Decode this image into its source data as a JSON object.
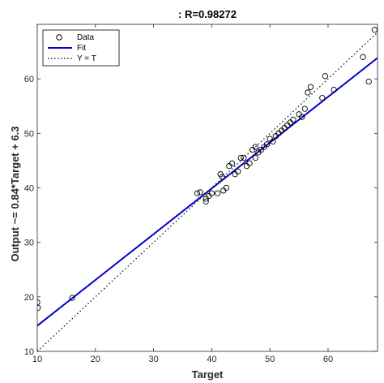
{
  "chart_data": {
    "type": "scatter",
    "title": ": R=0.98272",
    "xlabel": "Target",
    "ylabel": "Output ~= 0.84*Target + 6.3",
    "xlim": [
      10,
      68.5
    ],
    "ylim": [
      10,
      70
    ],
    "xticks": [
      10,
      20,
      30,
      40,
      50,
      60
    ],
    "yticks": [
      10,
      20,
      30,
      40,
      50,
      60
    ],
    "grid": false,
    "legend_position": "top-left",
    "colors": {
      "data": "#000000",
      "fit": "#0000cc",
      "identity": "#000000"
    },
    "series": [
      {
        "name": "Data",
        "style": "open-circle",
        "points": [
          [
            10,
            19
          ],
          [
            10.1,
            18
          ],
          [
            16,
            19.8
          ],
          [
            37.5,
            39
          ],
          [
            38,
            39.2
          ],
          [
            39,
            38
          ],
          [
            39,
            37.5
          ],
          [
            39.5,
            38.5
          ],
          [
            40,
            39
          ],
          [
            41,
            39
          ],
          [
            41.5,
            42.5
          ],
          [
            41.8,
            42
          ],
          [
            42,
            39.5
          ],
          [
            42.5,
            40
          ],
          [
            43,
            44
          ],
          [
            43.5,
            44.5
          ],
          [
            44,
            42.5
          ],
          [
            44.5,
            43
          ],
          [
            45,
            45.5
          ],
          [
            45.5,
            45.5
          ],
          [
            46,
            44
          ],
          [
            46.5,
            44.5
          ],
          [
            47,
            47
          ],
          [
            47.5,
            47.5
          ],
          [
            47.5,
            45.5
          ],
          [
            48,
            46.5
          ],
          [
            48.5,
            47
          ],
          [
            49,
            47.5
          ],
          [
            49.5,
            48
          ],
          [
            50,
            49
          ],
          [
            50.5,
            48.5
          ],
          [
            51,
            49.5
          ],
          [
            51.5,
            50
          ],
          [
            52,
            50.5
          ],
          [
            52.5,
            51
          ],
          [
            53,
            51.5
          ],
          [
            53.5,
            52
          ],
          [
            54,
            52.5
          ],
          [
            55,
            53.5
          ],
          [
            55.5,
            53
          ],
          [
            56,
            54.5
          ],
          [
            56.5,
            57.5
          ],
          [
            57,
            58.5
          ],
          [
            59,
            56.5
          ],
          [
            59.5,
            60.5
          ],
          [
            61,
            58
          ],
          [
            66,
            64
          ],
          [
            67,
            59.5
          ],
          [
            68,
            69
          ]
        ]
      },
      {
        "name": "Fit",
        "style": "solid-line",
        "slope": 0.84,
        "intercept": 6.3
      },
      {
        "name": "Y = T",
        "style": "dotted-line",
        "slope": 1,
        "intercept": 0
      }
    ]
  }
}
